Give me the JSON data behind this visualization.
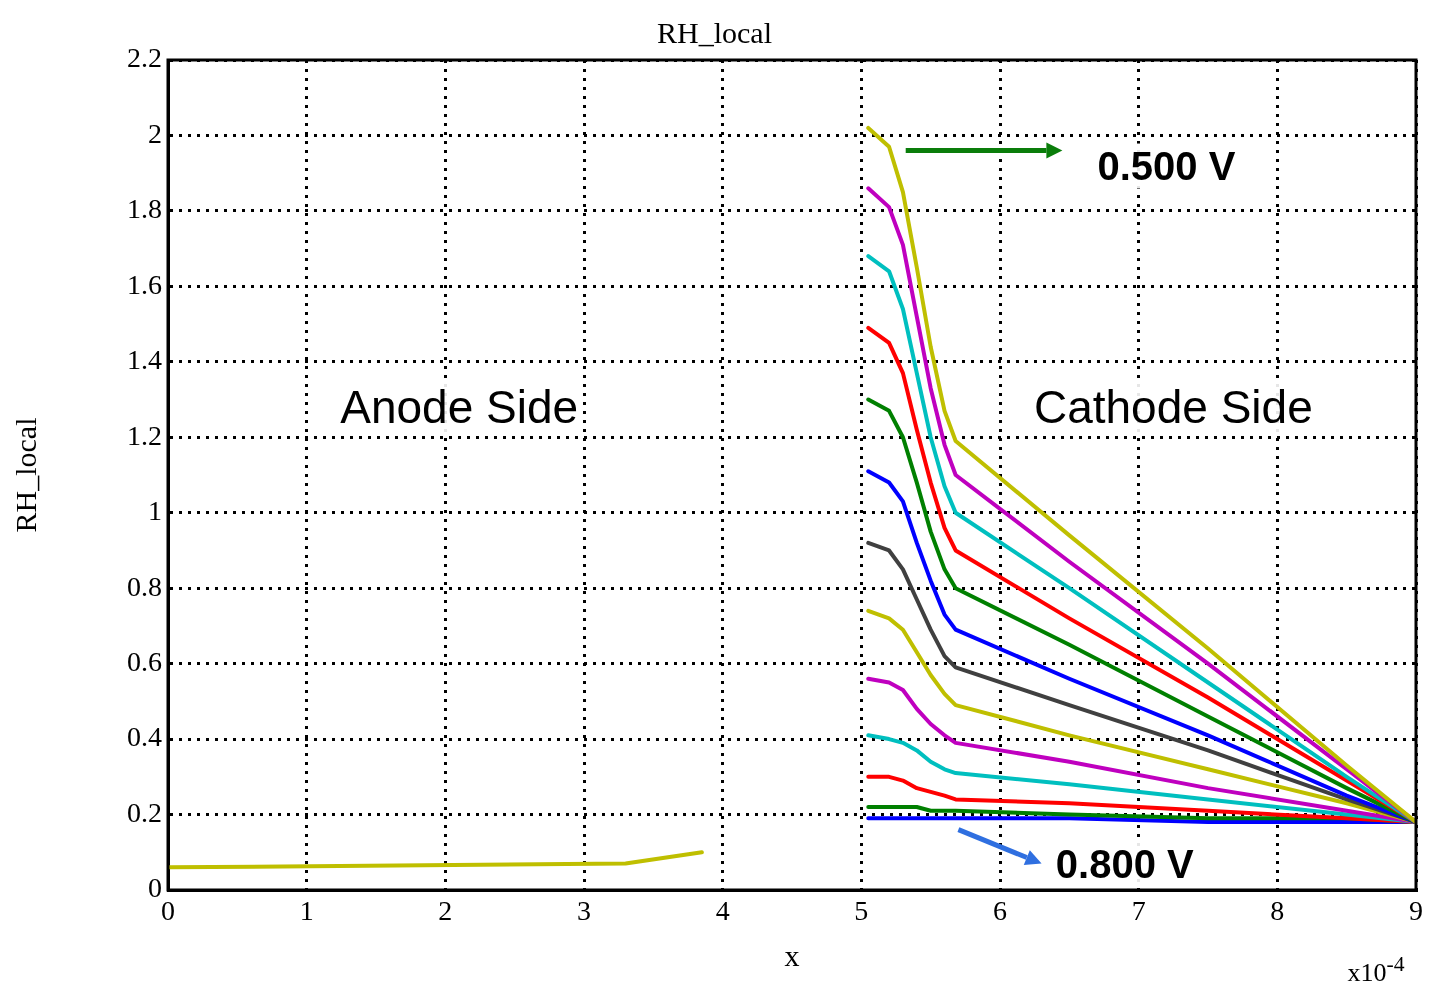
{
  "chart_data": {
    "type": "line",
    "title": "RH_local",
    "xlabel": "x",
    "ylabel": "RH_local",
    "xlim": [
      0,
      9
    ],
    "xticks": [
      0,
      1,
      2,
      3,
      4,
      5,
      6,
      7,
      8,
      9
    ],
    "ylim": [
      0,
      2.2
    ],
    "yticks": [
      0,
      0.2,
      0.4,
      0.6,
      0.8,
      1,
      1.2,
      1.4,
      1.6,
      1.8,
      2,
      2.2
    ],
    "x": [
      0,
      3.3,
      3.85,
      4.45,
      5.05,
      5.2,
      5.3,
      5.4,
      5.5,
      5.6,
      5.68,
      6.5,
      7.5,
      8.5,
      9
    ],
    "grid": true,
    "legend": false,
    "marker": "none",
    "line_style": "solid",
    "series": [
      {
        "color": "#bfbf00",
        "values": [
          0.06,
          0.07,
          0.1,
          null,
          2.02,
          1.97,
          1.85,
          1.65,
          1.44,
          1.27,
          1.19,
          0.94,
          0.64,
          0.33,
          0.18
        ]
      },
      {
        "color": "#bf00bf",
        "values": [
          null,
          null,
          null,
          null,
          1.86,
          1.81,
          1.71,
          1.52,
          1.33,
          1.18,
          1.1,
          0.87,
          0.6,
          0.32,
          0.18
        ]
      },
      {
        "color": "#00bfbf",
        "values": [
          null,
          null,
          null,
          null,
          1.68,
          1.64,
          1.54,
          1.37,
          1.2,
          1.07,
          1.0,
          0.8,
          0.55,
          0.3,
          0.18
        ]
      },
      {
        "color": "#ff0000",
        "values": [
          null,
          null,
          null,
          null,
          1.49,
          1.45,
          1.37,
          1.22,
          1.08,
          0.96,
          0.9,
          0.72,
          0.51,
          0.29,
          0.18
        ]
      },
      {
        "color": "#008000",
        "values": [
          null,
          null,
          null,
          null,
          1.3,
          1.27,
          1.2,
          1.08,
          0.95,
          0.85,
          0.8,
          0.65,
          0.46,
          0.27,
          0.18
        ]
      },
      {
        "color": "#0000ff",
        "values": [
          null,
          null,
          null,
          null,
          1.11,
          1.08,
          1.03,
          0.92,
          0.82,
          0.73,
          0.69,
          0.56,
          0.41,
          0.25,
          0.18
        ]
      },
      {
        "color": "#404040",
        "values": [
          null,
          null,
          null,
          null,
          0.92,
          0.9,
          0.85,
          0.77,
          0.69,
          0.62,
          0.59,
          0.49,
          0.37,
          0.24,
          0.18
        ]
      },
      {
        "color": "#bfbf00",
        "values": [
          null,
          null,
          null,
          null,
          0.74,
          0.72,
          0.69,
          0.63,
          0.57,
          0.52,
          0.49,
          0.41,
          0.32,
          0.23,
          0.18
        ]
      },
      {
        "color": "#bf00bf",
        "values": [
          null,
          null,
          null,
          null,
          0.56,
          0.55,
          0.53,
          0.48,
          0.44,
          0.41,
          0.39,
          0.34,
          0.27,
          0.21,
          0.18
        ]
      },
      {
        "color": "#00bfbf",
        "values": [
          null,
          null,
          null,
          null,
          0.41,
          0.4,
          0.39,
          0.37,
          0.34,
          0.32,
          0.31,
          0.28,
          0.24,
          0.2,
          0.18
        ]
      },
      {
        "color": "#ff0000",
        "values": [
          null,
          null,
          null,
          null,
          0.3,
          0.3,
          0.29,
          0.27,
          0.26,
          0.25,
          0.24,
          0.23,
          0.21,
          0.19,
          0.18
        ]
      },
      {
        "color": "#008000",
        "values": [
          null,
          null,
          null,
          null,
          0.22,
          0.22,
          0.22,
          0.22,
          0.21,
          0.21,
          0.21,
          0.2,
          0.19,
          0.19,
          0.18
        ]
      },
      {
        "color": "#0000ff",
        "values": [
          null,
          null,
          null,
          null,
          0.19,
          0.19,
          0.19,
          0.19,
          0.19,
          0.19,
          0.19,
          0.19,
          0.18,
          0.18,
          0.18
        ]
      }
    ],
    "annotations": [
      "Anode Side",
      "Cathode Side",
      "0.500 V",
      "0.800 V",
      "x10$^{-4}$"
    ]
  }
}
